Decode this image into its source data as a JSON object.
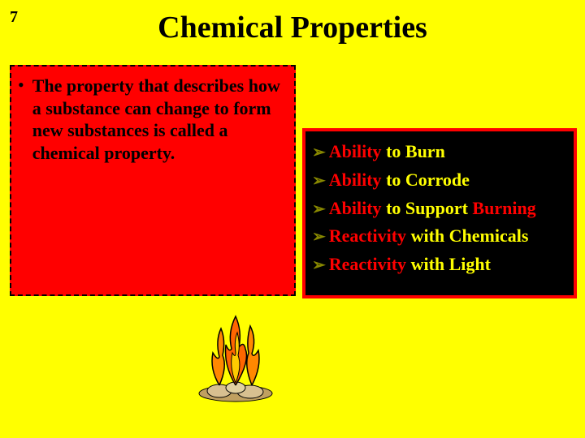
{
  "slide_number": "7",
  "title": "Chemical Properties",
  "definition": {
    "bullet": "•",
    "text": "The property that describes how a substance can change to form new substances is called a chemical property."
  },
  "abilities": {
    "arrow": "➢",
    "items": [
      {
        "red": "Ability",
        "yellow": " to Burn"
      },
      {
        "red": "Ability",
        "yellow": " to Corrode"
      },
      {
        "red": "Ability",
        "yellow": " to Support ",
        "red2": "Burning"
      },
      {
        "red": "Reactivity",
        "yellow": " with Chemicals"
      },
      {
        "red": "Reactivity",
        "yellow": " with Light"
      }
    ]
  },
  "colors": {
    "background": "#ffff00",
    "red_box": "#ff0000",
    "black_box_bg": "#000000",
    "black_box_border": "#ff0000",
    "arrow_color": "#888800"
  }
}
